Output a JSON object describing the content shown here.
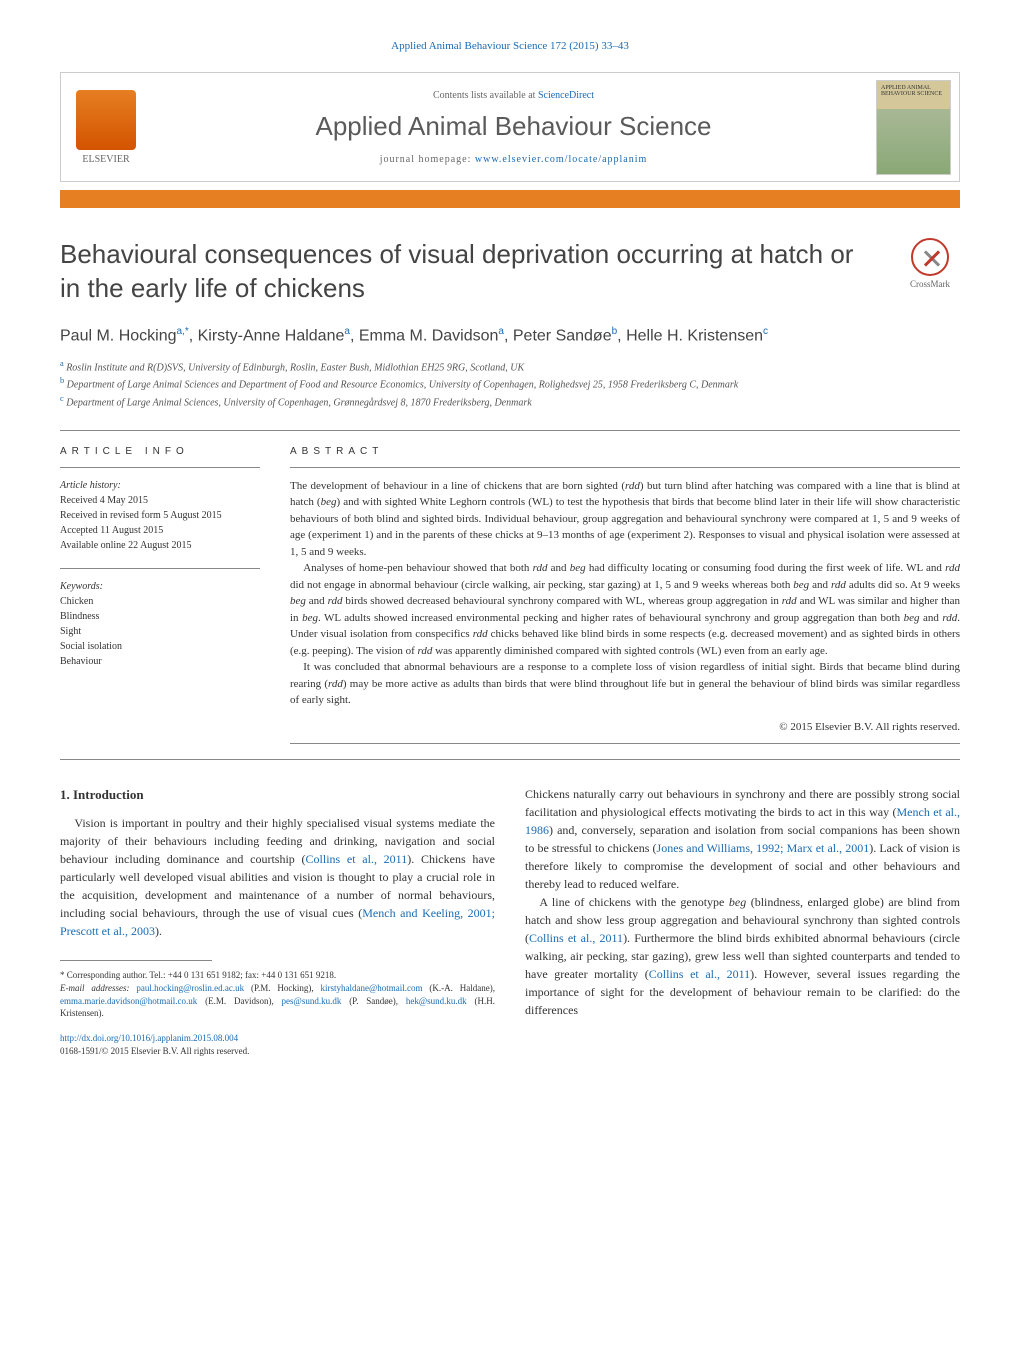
{
  "journal_ref": "Applied Animal Behaviour Science 172 (2015) 33–43",
  "header": {
    "contents_prefix": "Contents lists available at ",
    "contents_link": "ScienceDirect",
    "journal_name": "Applied Animal Behaviour Science",
    "homepage_prefix": "journal homepage: ",
    "homepage_link": "www.elsevier.com/locate/applanim",
    "elsevier_label": "ELSEVIER",
    "cover_text": "APPLIED ANIMAL BEHAVIOUR SCIENCE"
  },
  "crossmark_label": "CrossMark",
  "title": "Behavioural consequences of visual deprivation occurring at hatch or in the early life of chickens",
  "authors_html": "Paul M. Hocking",
  "authors": [
    {
      "name": "Paul M. Hocking",
      "sup": "a,*"
    },
    {
      "name": "Kirsty-Anne Haldane",
      "sup": "a"
    },
    {
      "name": "Emma M. Davidson",
      "sup": "a"
    },
    {
      "name": "Peter Sandøe",
      "sup": "b"
    },
    {
      "name": "Helle H. Kristensen",
      "sup": "c"
    }
  ],
  "affiliations": [
    {
      "sup": "a",
      "text": "Roslin Institute and R(D)SVS, University of Edinburgh, Roslin, Easter Bush, Midlothian EH25 9RG, Scotland, UK"
    },
    {
      "sup": "b",
      "text": "Department of Large Animal Sciences and Department of Food and Resource Economics, University of Copenhagen, Rolighedsvej 25, 1958 Frederiksberg C, Denmark"
    },
    {
      "sup": "c",
      "text": "Department of Large Animal Sciences, University of Copenhagen, Grønnegårdsvej 8, 1870 Frederiksberg, Denmark"
    }
  ],
  "article_info": {
    "heading": "ARTICLE INFO",
    "history_label": "Article history:",
    "history": [
      "Received 4 May 2015",
      "Received in revised form 5 August 2015",
      "Accepted 11 August 2015",
      "Available online 22 August 2015"
    ],
    "keywords_label": "Keywords:",
    "keywords": [
      "Chicken",
      "Blindness",
      "Sight",
      "Social isolation",
      "Behaviour"
    ]
  },
  "abstract": {
    "heading": "ABSTRACT",
    "paragraphs": [
      "The development of behaviour in a line of chickens that are born sighted (rdd) but turn blind after hatching was compared with a line that is blind at hatch (beg) and with sighted White Leghorn controls (WL) to test the hypothesis that birds that become blind later in their life will show characteristic behaviours of both blind and sighted birds. Individual behaviour, group aggregation and behavioural synchrony were compared at 1, 5 and 9 weeks of age (experiment 1) and in the parents of these chicks at 9–13 months of age (experiment 2). Responses to visual and physical isolation were assessed at 1, 5 and 9 weeks.",
      "Analyses of home-pen behaviour showed that both rdd and beg had difficulty locating or consuming food during the first week of life. WL and rdd did not engage in abnormal behaviour (circle walking, air pecking, star gazing) at 1, 5 and 9 weeks whereas both beg and rdd adults did so. At 9 weeks beg and rdd birds showed decreased behavioural synchrony compared with WL, whereas group aggregation in rdd and WL was similar and higher than in beg. WL adults showed increased environmental pecking and higher rates of behavioural synchrony and group aggregation than both beg and rdd. Under visual isolation from conspecifics rdd chicks behaved like blind birds in some respects (e.g. decreased movement) and as sighted birds in others (e.g. peeping). The vision of rdd was apparently diminished compared with sighted controls (WL) even from an early age.",
      "It was concluded that abnormal behaviours are a response to a complete loss of vision regardless of initial sight. Birds that became blind during rearing (rdd) may be more active as adults than birds that were blind throughout life but in general the behaviour of blind birds was similar regardless of early sight."
    ],
    "copyright": "© 2015 Elsevier B.V. All rights reserved."
  },
  "intro": {
    "heading": "1. Introduction",
    "col1": "Vision is important in poultry and their highly specialised visual systems mediate the majority of their behaviours including feeding and drinking, navigation and social behaviour including dominance and courtship (Collins et al., 2011). Chickens have particularly well developed visual abilities and vision is thought to play a crucial role in the acquisition, development and maintenance of a number of normal behaviours, including social behaviours, through the use of visual cues (Mench and Keeling, 2001; Prescott et al., 2003).",
    "col2_p1": "Chickens naturally carry out behaviours in synchrony and there are possibly strong social facilitation and physiological effects motivating the birds to act in this way (Mench et al., 1986) and, conversely, separation and isolation from social companions has been shown to be stressful to chickens (Jones and Williams, 1992; Marx et al., 2001). Lack of vision is therefore likely to compromise the development of social and other behaviours and thereby lead to reduced welfare.",
    "col2_p2": "A line of chickens with the genotype beg (blindness, enlarged globe) are blind from hatch and show less group aggregation and behavioural synchrony than sighted controls (Collins et al., 2011). Furthermore the blind birds exhibited abnormal behaviours (circle walking, air pecking, star gazing), grew less well than sighted counterparts and tended to have greater mortality (Collins et al., 2011). However, several issues regarding the importance of sight for the development of behaviour remain to be clarified: do the differences"
  },
  "footnotes": {
    "corresponding": "* Corresponding author. Tel.: +44 0 131 651 9182; fax: +44 0 131 651 9218.",
    "emails_label": "E-mail addresses: ",
    "emails": [
      {
        "email": "paul.hocking@roslin.ed.ac.uk",
        "person": "(P.M. Hocking),"
      },
      {
        "email": "kirstyhaldane@hotmail.com",
        "person": "(K.-A. Haldane),"
      },
      {
        "email": "emma.marie.davidson@hotmail.co.uk",
        "person": "(E.M. Davidson),"
      },
      {
        "email": "pes@sund.ku.dk",
        "person": "(P. Sandøe),"
      },
      {
        "email": "hek@sund.ku.dk",
        "person": "(H.H. Kristensen)."
      }
    ]
  },
  "doi": "http://dx.doi.org/10.1016/j.applanim.2015.08.004",
  "issn_copyright": "0168-1591/© 2015 Elsevier B.V. All rights reserved.",
  "colors": {
    "link": "#1a6bb3",
    "orange_bar": "#e67e22",
    "text": "#333333"
  }
}
